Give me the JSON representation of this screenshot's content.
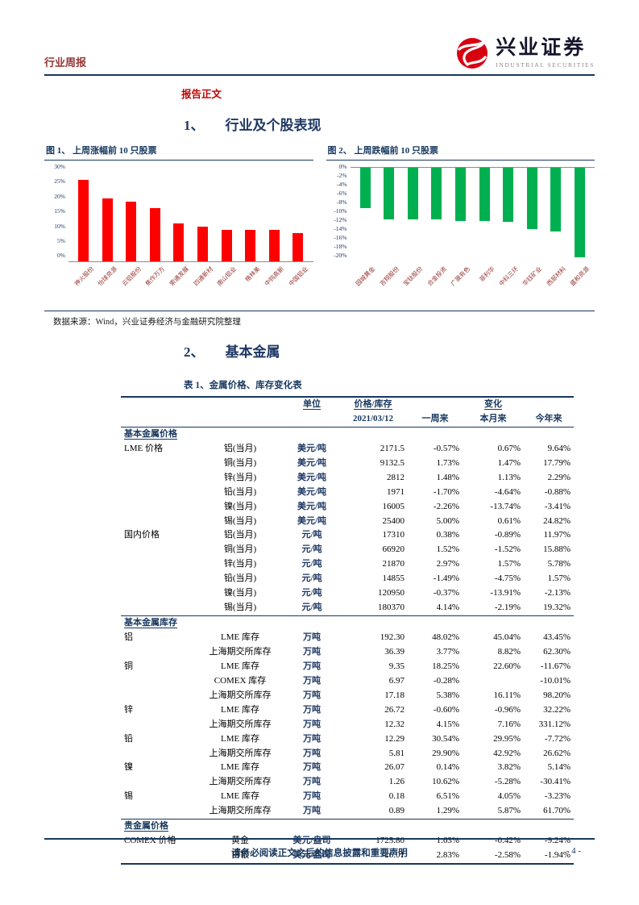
{
  "colors": {
    "navy": "#17375E",
    "heading_navy": "#1F3864",
    "report_red": "#C00000",
    "maroon": "#943634",
    "bar_red": "#FF0000",
    "bar_green": "#00B050"
  },
  "header": {
    "left_title": "行业周报",
    "logo_cn": "兴业证券",
    "logo_en": "INDUSTRIAL SECURITIES"
  },
  "labels": {
    "report_body": "报告正文",
    "datasource": "数据来源：Wind，兴业证券经济与金融研究院整理",
    "footer": "请务必阅读正文之后的信息披露和重要声明",
    "page_number": "- 4 -"
  },
  "sections": {
    "s1_num": "1、",
    "s1_title": "行业及个股表现",
    "s2_num": "2、",
    "s2_title": "基本金属",
    "table_title": "表 1、金属价格、库存变化表"
  },
  "chart_data": [
    {
      "type": "bar",
      "title": "图 1、 上周涨幅前 10 只股票",
      "categories": [
        "神火股份",
        "怡球资源",
        "云铝股份",
        "焦作万方",
        "索通发展",
        "四通新材",
        "南山铝业",
        "格林美",
        "中钨高新",
        "中国铝业"
      ],
      "values": [
        26,
        20,
        19,
        17,
        12,
        11,
        10,
        10,
        10,
        9
      ],
      "ylim": [
        0,
        30
      ],
      "yticks": [
        "30%",
        "25%",
        "20%",
        "15%",
        "10%",
        "5%",
        "0%"
      ],
      "bar_color": "#FF0000",
      "xlabel": "",
      "ylabel": "",
      "grid": false,
      "legend": "none"
    },
    {
      "type": "bar",
      "title": "图 2、 上周跌幅前 10 只股票",
      "categories": [
        "园城黄金",
        "吉翔股份",
        "宝钛股份",
        "合金投资",
        "广晟有色",
        "菲利华",
        "中科三环",
        "华钰矿业",
        "西部材料",
        "盛和资源"
      ],
      "values": [
        -8.5,
        -11,
        -11,
        -11,
        -11.2,
        -11.3,
        -11.5,
        -13,
        -13.5,
        -19
      ],
      "ylim": [
        -20,
        0
      ],
      "yticks": [
        "0%",
        "-2%",
        "-4%",
        "-6%",
        "-8%",
        "-10%",
        "-12%",
        "-14%",
        "-16%",
        "-18%",
        "-20%"
      ],
      "bar_color": "#00B050",
      "xlabel": "",
      "ylabel": "",
      "grid": false,
      "legend": "none"
    }
  ],
  "table": {
    "title": "表 1、金属价格、库存变化表",
    "header": {
      "unit": "单位",
      "price": "价格/库存",
      "date": "2021/03/12",
      "change": "变化",
      "week": "一周来",
      "month": "本月来",
      "year": "今年来"
    },
    "rows": [
      {
        "section": "基本金属价格"
      },
      {
        "g": "LME 价格",
        "n": "铝(当月)",
        "u": "美元/吨",
        "v": "2171.5",
        "w": "-0.57%",
        "m": "0.67%",
        "y": "9.64%"
      },
      {
        "g": "",
        "n": "铜(当月)",
        "u": "美元/吨",
        "v": "9132.5",
        "w": "1.73%",
        "m": "1.47%",
        "y": "17.79%"
      },
      {
        "g": "",
        "n": "锌(当月)",
        "u": "美元/吨",
        "v": "2812",
        "w": "1.48%",
        "m": "1.13%",
        "y": "2.29%"
      },
      {
        "g": "",
        "n": "铅(当月)",
        "u": "美元/吨",
        "v": "1971",
        "w": "-1.70%",
        "m": "-4.64%",
        "y": "-0.88%"
      },
      {
        "g": "",
        "n": "镍(当月)",
        "u": "美元/吨",
        "v": "16005",
        "w": "-2.26%",
        "m": "-13.74%",
        "y": "-3.41%"
      },
      {
        "g": "",
        "n": "锡(当月)",
        "u": "美元/吨",
        "v": "25400",
        "w": "5.00%",
        "m": "0.61%",
        "y": "24.82%"
      },
      {
        "g": "国内价格",
        "n": "铝(当月)",
        "u": "元/吨",
        "v": "17310",
        "w": "0.38%",
        "m": "-0.89%",
        "y": "11.97%"
      },
      {
        "g": "",
        "n": "铜(当月)",
        "u": "元/吨",
        "v": "66920",
        "w": "1.52%",
        "m": "-1.52%",
        "y": "15.88%"
      },
      {
        "g": "",
        "n": "锌(当月)",
        "u": "元/吨",
        "v": "21870",
        "w": "2.97%",
        "m": "1.57%",
        "y": "5.78%"
      },
      {
        "g": "",
        "n": "铅(当月)",
        "u": "元/吨",
        "v": "14855",
        "w": "-1.49%",
        "m": "-4.75%",
        "y": "1.57%"
      },
      {
        "g": "",
        "n": "镍(当月)",
        "u": "元/吨",
        "v": "120950",
        "w": "-0.37%",
        "m": "-13.91%",
        "y": "-2.13%"
      },
      {
        "g": "",
        "n": "锡(当月)",
        "u": "元/吨",
        "v": "180370",
        "w": "4.14%",
        "m": "-2.19%",
        "y": "19.32%"
      },
      {
        "section": "基本金属库存"
      },
      {
        "g": "铝",
        "n": "LME 库存",
        "u": "万吨",
        "v": "192.30",
        "w": "48.02%",
        "m": "45.04%",
        "y": "43.45%"
      },
      {
        "g": "",
        "n": "上海期交所库存",
        "u": "万吨",
        "v": "36.39",
        "w": "3.77%",
        "m": "8.82%",
        "y": "62.30%"
      },
      {
        "g": "铜",
        "n": "LME 库存",
        "u": "万吨",
        "v": "9.35",
        "w": "18.25%",
        "m": "22.60%",
        "y": "-11.67%"
      },
      {
        "g": "",
        "n": "COMEX 库存",
        "u": "万吨",
        "v": "6.97",
        "w": "-0.28%",
        "m": "",
        "y": "-10.01%"
      },
      {
        "g": "",
        "n": "上海期交所库存",
        "u": "万吨",
        "v": "17.18",
        "w": "5.38%",
        "m": "16.11%",
        "y": "98.20%"
      },
      {
        "g": "锌",
        "n": "LME 库存",
        "u": "万吨",
        "v": "26.72",
        "w": "-0.60%",
        "m": "-0.96%",
        "y": "32.22%"
      },
      {
        "g": "",
        "n": "上海期交所库存",
        "u": "万吨",
        "v": "12.32",
        "w": "4.15%",
        "m": "7.16%",
        "y": "331.12%"
      },
      {
        "g": "铅",
        "n": "LME 库存",
        "u": "万吨",
        "v": "12.29",
        "w": "30.54%",
        "m": "29.95%",
        "y": "-7.72%"
      },
      {
        "g": "",
        "n": "上海期交所库存",
        "u": "万吨",
        "v": "5.81",
        "w": "29.90%",
        "m": "42.92%",
        "y": "26.62%"
      },
      {
        "g": "镍",
        "n": "LME 库存",
        "u": "万吨",
        "v": "26.07",
        "w": "0.14%",
        "m": "3.82%",
        "y": "5.14%"
      },
      {
        "g": "",
        "n": "上海期交所库存",
        "u": "万吨",
        "v": "1.26",
        "w": "10.62%",
        "m": "-5.28%",
        "y": "-30.41%"
      },
      {
        "g": "锡",
        "n": "LME 库存",
        "u": "万吨",
        "v": "0.18",
        "w": "6.51%",
        "m": "4.05%",
        "y": "-3.23%"
      },
      {
        "g": "",
        "n": "上海期交所库存",
        "u": "万吨",
        "v": "0.89",
        "w": "1.29%",
        "m": "5.87%",
        "y": "61.70%"
      },
      {
        "section": "贵金属价格"
      },
      {
        "g": "COMEX 价格",
        "n": "黄金",
        "u": "美元/盎司",
        "v": "1725.80",
        "w": "1.63%",
        "m": "-0.42%",
        "y": "-9.24%"
      },
      {
        "g": "",
        "n": "白银",
        "u": "美元/盎司",
        "v": "26.01",
        "w": "2.83%",
        "m": "-2.58%",
        "y": "-1.94%"
      }
    ]
  }
}
